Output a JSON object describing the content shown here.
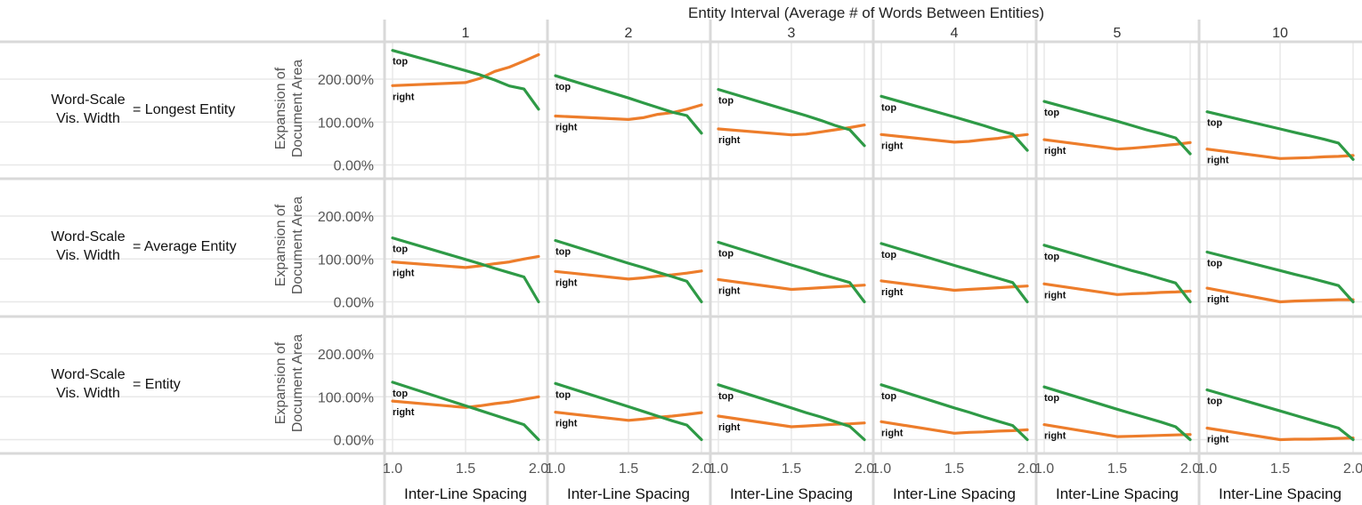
{
  "chart_data": {
    "type": "line",
    "column_header": "Entity Interval (Average # of Words Between Entities)",
    "columns": [
      "1",
      "2",
      "3",
      "4",
      "5",
      "10"
    ],
    "row_headers": [
      {
        "line1": "Word-Scale",
        "line2": "Vis. Width",
        "value": "= Longest Entity"
      },
      {
        "line1": "Word-Scale",
        "line2": "Vis. Width",
        "value": "= Average Entity"
      },
      {
        "line1": "Word-Scale",
        "line2": "Vis. Width",
        "value": "= Entity"
      }
    ],
    "ylabel_line1": "Expansion of",
    "ylabel_line2": "Document Area",
    "xlabel": "Inter-Line Spacing",
    "xlim": [
      1.0,
      2.0
    ],
    "ylim": [
      -0.3,
      2.85
    ],
    "x_ticks": [
      1.0,
      1.5,
      2.0
    ],
    "x_tick_labels": [
      "1.0",
      "1.5",
      "2.0"
    ],
    "y_ticks": [
      0,
      1,
      2
    ],
    "y_tick_labels": [
      "0.00%",
      "100.00%",
      "200.00%"
    ],
    "grid": true,
    "colors": {
      "top": "#2e9a46",
      "right": "#ed7d2b",
      "grid": "#e8e8e8",
      "divider": "#d9d9d9"
    },
    "x": [
      1.0,
      1.5,
      1.6,
      1.7,
      1.8,
      1.9,
      2.0
    ],
    "panels": [
      [
        {
          "top": [
            2.67,
            2.2,
            2.1,
            1.98,
            1.84,
            1.77,
            1.3
          ],
          "right": [
            1.85,
            1.92,
            2.02,
            2.18,
            2.28,
            2.42,
            2.57
          ]
        },
        {
          "top": [
            2.08,
            1.56,
            1.45,
            1.34,
            1.23,
            1.15,
            0.74
          ],
          "right": [
            1.14,
            1.06,
            1.1,
            1.18,
            1.22,
            1.3,
            1.4
          ]
        },
        {
          "top": [
            1.76,
            1.25,
            1.15,
            1.04,
            0.92,
            0.82,
            0.45
          ],
          "right": [
            0.84,
            0.7,
            0.72,
            0.77,
            0.82,
            0.87,
            0.93
          ]
        },
        {
          "top": [
            1.6,
            1.12,
            1.02,
            0.92,
            0.81,
            0.72,
            0.34
          ],
          "right": [
            0.71,
            0.53,
            0.55,
            0.59,
            0.62,
            0.67,
            0.71
          ]
        },
        {
          "top": [
            1.48,
            1.02,
            0.92,
            0.82,
            0.73,
            0.63,
            0.26
          ],
          "right": [
            0.59,
            0.37,
            0.39,
            0.42,
            0.45,
            0.48,
            0.52
          ]
        },
        {
          "top": [
            1.24,
            0.84,
            0.76,
            0.68,
            0.6,
            0.51,
            0.13
          ],
          "right": [
            0.37,
            0.15,
            0.16,
            0.17,
            0.19,
            0.2,
            0.22
          ]
        }
      ],
      [
        {
          "top": [
            1.49,
            0.99,
            0.89,
            0.78,
            0.68,
            0.58,
            0.0
          ],
          "right": [
            0.93,
            0.8,
            0.84,
            0.89,
            0.93,
            1.0,
            1.06
          ]
        },
        {
          "top": [
            1.43,
            0.9,
            0.8,
            0.69,
            0.59,
            0.48,
            0.0
          ],
          "right": [
            0.71,
            0.53,
            0.56,
            0.6,
            0.63,
            0.67,
            0.72
          ]
        },
        {
          "top": [
            1.39,
            0.86,
            0.76,
            0.65,
            0.55,
            0.45,
            0.0
          ],
          "right": [
            0.52,
            0.29,
            0.31,
            0.33,
            0.35,
            0.37,
            0.39
          ]
        },
        {
          "top": [
            1.36,
            0.85,
            0.75,
            0.65,
            0.55,
            0.45,
            0.0
          ],
          "right": [
            0.49,
            0.27,
            0.29,
            0.31,
            0.33,
            0.35,
            0.37
          ]
        },
        {
          "top": [
            1.32,
            0.83,
            0.73,
            0.64,
            0.54,
            0.44,
            0.0
          ],
          "right": [
            0.42,
            0.17,
            0.19,
            0.2,
            0.22,
            0.23,
            0.25
          ]
        },
        {
          "top": [
            1.16,
            0.73,
            0.64,
            0.56,
            0.47,
            0.38,
            0.0
          ],
          "right": [
            0.32,
            0.0,
            0.02,
            0.03,
            0.04,
            0.05,
            0.05
          ]
        }
      ],
      [
        {
          "top": [
            1.34,
            0.79,
            0.68,
            0.57,
            0.46,
            0.35,
            0.0
          ],
          "right": [
            0.9,
            0.75,
            0.79,
            0.84,
            0.88,
            0.94,
            1.0
          ]
        },
        {
          "top": [
            1.31,
            0.77,
            0.66,
            0.55,
            0.44,
            0.34,
            0.0
          ],
          "right": [
            0.64,
            0.45,
            0.48,
            0.52,
            0.55,
            0.59,
            0.63
          ]
        },
        {
          "top": [
            1.28,
            0.74,
            0.63,
            0.53,
            0.42,
            0.31,
            0.0
          ],
          "right": [
            0.55,
            0.3,
            0.32,
            0.34,
            0.36,
            0.37,
            0.39
          ]
        },
        {
          "top": [
            1.28,
            0.74,
            0.64,
            0.53,
            0.43,
            0.33,
            0.0
          ],
          "right": [
            0.42,
            0.15,
            0.17,
            0.18,
            0.2,
            0.21,
            0.23
          ]
        },
        {
          "top": [
            1.23,
            0.71,
            0.61,
            0.51,
            0.41,
            0.3,
            0.0
          ],
          "right": [
            0.35,
            0.07,
            0.08,
            0.09,
            0.1,
            0.11,
            0.12
          ]
        },
        {
          "top": [
            1.16,
            0.67,
            0.57,
            0.47,
            0.37,
            0.27,
            0.0
          ],
          "right": [
            0.27,
            0.0,
            0.01,
            0.01,
            0.02,
            0.03,
            0.04
          ]
        }
      ]
    ],
    "series_labels": {
      "top": "top",
      "right": "right"
    }
  }
}
